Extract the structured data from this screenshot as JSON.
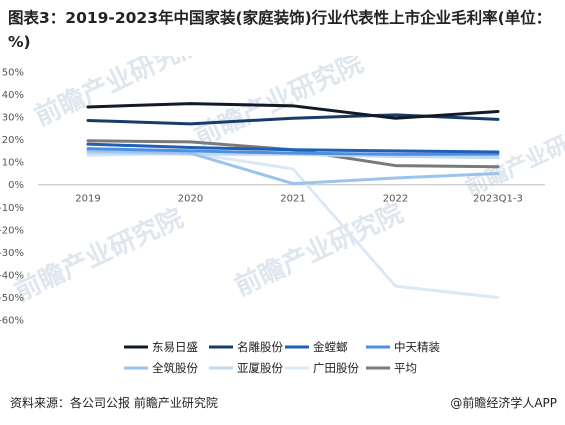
{
  "title": "图表3：2019-2023年中国家装(家庭装饰)行业代表性上市企业毛利率(单位：%)",
  "footer": {
    "source": "资料来源：各公司公报 前瞻产业研究院",
    "brand": "@前瞻经济学人APP"
  },
  "watermark_text": "前瞻产业研究院",
  "chart_data": {
    "type": "line",
    "categories": [
      "2019",
      "2020",
      "2021",
      "2022",
      "2023Q1-3"
    ],
    "ylim": [
      -60,
      50
    ],
    "yticks": [
      50,
      40,
      30,
      20,
      10,
      0,
      -10,
      -20,
      -30,
      -40,
      -50,
      -60
    ],
    "ytick_labels": [
      "50%",
      "40%",
      "30%",
      "20%",
      "10%",
      "0%",
      "-10%",
      "-20%",
      "-30%",
      "-40%",
      "-50%",
      "-60%"
    ],
    "grid": false,
    "legend_position": "bottom",
    "series": [
      {
        "name": "东易日盛",
        "color": "#111a26",
        "values": [
          34.5,
          36,
          35,
          29.5,
          32.5
        ]
      },
      {
        "name": "名雕股份",
        "color": "#163c6b",
        "values": [
          28.5,
          27,
          29.5,
          31,
          29
        ]
      },
      {
        "name": "金螳螂",
        "color": "#1f5fb5",
        "values": [
          18,
          16.5,
          15.5,
          15,
          14.5
        ]
      },
      {
        "name": "中天精装",
        "color": "#4f8fe0",
        "values": [
          16,
          15,
          14,
          13.5,
          13.5
        ]
      },
      {
        "name": "全筑股份",
        "color": "#9cc3ec",
        "values": [
          15,
          14,
          0.5,
          3,
          5
        ]
      },
      {
        "name": "亚厦股份",
        "color": "#c0d8f0",
        "values": [
          14,
          13.5,
          13.5,
          12.5,
          12
        ]
      },
      {
        "name": "广田股份",
        "color": "#dbe8f6",
        "values": [
          13,
          14,
          7,
          -45,
          -50
        ]
      },
      {
        "name": "平均",
        "color": "#7a7a7a",
        "values": [
          19.5,
          19,
          15.5,
          8.5,
          8
        ]
      }
    ]
  }
}
